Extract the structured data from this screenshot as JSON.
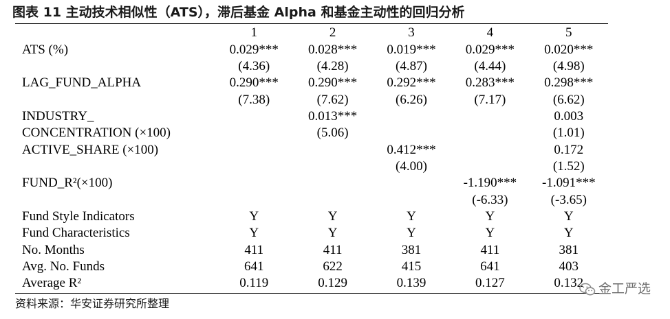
{
  "title": "图表 11 主动技术相似性（ATS），滞后基金 Alpha 和基金主动性的回归分析",
  "columns": [
    "1",
    "2",
    "3",
    "4",
    "5"
  ],
  "rows": [
    {
      "label": "ATS (%)",
      "values": [
        "0.029***",
        "0.028***",
        "0.019***",
        "0.029***",
        "0.020***"
      ]
    },
    {
      "label": "",
      "values": [
        "(4.36)",
        "(4.28)",
        "(4.87)",
        "(4.44)",
        "(4.98)"
      ]
    },
    {
      "label": "LAG_FUND_ALPHA",
      "values": [
        "0.290***",
        "0.290***",
        "0.292***",
        "0.283***",
        "0.298***"
      ]
    },
    {
      "label": "",
      "values": [
        "(7.38)",
        "(7.62)",
        "(6.26)",
        "(7.17)",
        "(6.62)"
      ]
    },
    {
      "label": "INDUSTRY_",
      "values": [
        "",
        "0.013***",
        "",
        "",
        "0.003"
      ]
    },
    {
      "label": "CONCENTRATION (×100)",
      "values": [
        "",
        "(5.06)",
        "",
        "",
        "(1.01)"
      ]
    },
    {
      "label": "ACTIVE_SHARE (×100)",
      "values": [
        "",
        "",
        "0.412***",
        "",
        "0.172"
      ]
    },
    {
      "label": "",
      "values": [
        "",
        "",
        "(4.00)",
        "",
        "(1.52)"
      ]
    },
    {
      "label": "FUND_R²(×100)",
      "values": [
        "",
        "",
        "",
        "-1.190***",
        "-1.091***"
      ]
    },
    {
      "label": "",
      "values": [
        "",
        "",
        "",
        "(-6.33)",
        "(-3.65)"
      ]
    },
    {
      "label": "Fund Style Indicators",
      "values": [
        "Y",
        "Y",
        "Y",
        "Y",
        "Y"
      ]
    },
    {
      "label": "Fund Characteristics",
      "values": [
        "Y",
        "Y",
        "Y",
        "Y",
        "Y"
      ]
    },
    {
      "label": "No. Months",
      "values": [
        "411",
        "411",
        "381",
        "411",
        "381"
      ]
    },
    {
      "label": "Avg. No. Funds",
      "values": [
        "641",
        "622",
        "415",
        "641",
        "403"
      ]
    },
    {
      "label": "Average R²",
      "values": [
        "0.119",
        "0.129",
        "0.139",
        "0.127",
        "0.132"
      ]
    }
  ],
  "source": "资料来源：华安证券研究所整理",
  "watermark": {
    "icon": "wechat-icon",
    "text": "金工严选"
  }
}
